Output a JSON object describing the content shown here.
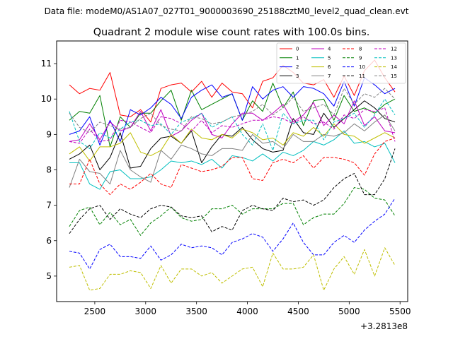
{
  "chart_data": {
    "type": "line",
    "suptitle": "Data file: modeM0/AS1A07_027T01_9000003690_25188cztM0_level2_quad_clean.evt",
    "title": "Quadrant 2 module wise count rates with 100.0s bins.",
    "xlabel": "",
    "ylabel": "",
    "x_offset_label": "+3.2813e8",
    "xlim": [
      2125,
      5575
    ],
    "ylim": [
      4.28,
      11.64
    ],
    "xticks": [
      2500,
      3000,
      3500,
      4000,
      4500,
      5000,
      5500
    ],
    "yticks": [
      5,
      6,
      7,
      8,
      9,
      10,
      11
    ],
    "x": [
      2250,
      2350,
      2450,
      2550,
      2650,
      2750,
      2850,
      2950,
      3050,
      3150,
      3250,
      3350,
      3450,
      3550,
      3650,
      3750,
      3850,
      3950,
      4050,
      4150,
      4250,
      4350,
      4450,
      4550,
      4650,
      4750,
      4850,
      4950,
      5050,
      5150,
      5250,
      5350,
      5450
    ],
    "legend_location": "upper right",
    "legend_ncol": 4,
    "series": [
      {
        "name": "0",
        "color": "#ff0000",
        "dash": "solid",
        "values": [
          10.4,
          10.15,
          10.3,
          10.25,
          10.75,
          9.55,
          9.5,
          9.7,
          9.35,
          10.3,
          10.4,
          10.45,
          10.2,
          10.5,
          10.05,
          10.45,
          10.2,
          10.15,
          9.75,
          10.5,
          10.6,
          10.95,
          10.75,
          10.45,
          10.4,
          10.55,
          10.05,
          10.65,
          10.1,
          10.8,
          11.1,
          10.6,
          10.2
        ]
      },
      {
        "name": "1",
        "color": "#008000",
        "dash": "solid",
        "values": [
          9.4,
          9.65,
          9.6,
          10.1,
          8.65,
          9.5,
          9.2,
          9.6,
          9.6,
          9.95,
          10.25,
          9.4,
          10.25,
          9.7,
          9.85,
          10.0,
          10.15,
          9.4,
          9.95,
          9.65,
          10.45,
          9.75,
          10.2,
          9.25,
          9.95,
          10.0,
          9.4,
          10.1,
          9.65,
          9.75,
          9.6,
          9.85,
          10.0
        ]
      },
      {
        "name": "2",
        "color": "#0000ff",
        "dash": "solid",
        "values": [
          9.0,
          9.1,
          9.5,
          8.7,
          9.4,
          8.8,
          9.7,
          9.55,
          9.75,
          10.05,
          9.85,
          9.45,
          10.05,
          10.25,
          10.4,
          10.05,
          10.15,
          9.4,
          10.35,
          10.0,
          10.25,
          10.35,
          10.05,
          10.35,
          10.3,
          10.15,
          9.8,
          10.5,
          9.8,
          10.6,
          10.4,
          10.15,
          10.3
        ]
      },
      {
        "name": "3",
        "color": "#000000",
        "dash": "solid",
        "values": [
          8.3,
          8.45,
          8.7,
          8.0,
          8.35,
          9.05,
          8.05,
          8.1,
          8.6,
          8.9,
          8.95,
          8.75,
          9.1,
          8.2,
          8.65,
          9.0,
          8.95,
          9.2,
          8.85,
          8.6,
          8.5,
          8.55,
          9.45,
          9.05,
          9.0,
          9.6,
          9.2,
          9.45,
          9.7,
          9.95,
          9.75,
          9.45,
          9.35
        ]
      },
      {
        "name": "4",
        "color": "#bf00bf",
        "dash": "solid",
        "values": [
          8.8,
          8.85,
          9.3,
          8.85,
          9.35,
          9.1,
          9.2,
          9.65,
          9.1,
          9.7,
          8.95,
          9.1,
          9.4,
          9.6,
          9.0,
          8.9,
          9.3,
          9.6,
          9.6,
          9.4,
          9.6,
          9.85,
          9.35,
          9.55,
          9.9,
          9.25,
          9.55,
          9.3,
          9.95,
          9.25,
          9.5,
          9.1,
          9.05
        ]
      },
      {
        "name": "5",
        "color": "#00bfbf",
        "dash": "solid",
        "values": [
          8.2,
          8.2,
          7.6,
          7.45,
          7.95,
          8.0,
          7.75,
          7.75,
          7.8,
          8.0,
          8.25,
          8.2,
          8.25,
          8.15,
          8.3,
          8.05,
          8.4,
          8.35,
          8.25,
          8.45,
          8.25,
          8.5,
          8.4,
          8.55,
          8.8,
          8.7,
          8.85,
          9.1,
          8.75,
          8.8,
          8.65,
          8.75,
          8.2
        ]
      },
      {
        "name": "6",
        "color": "#bfbf00",
        "dash": "solid",
        "values": [
          8.45,
          8.65,
          8.25,
          8.65,
          8.65,
          8.75,
          9.05,
          8.5,
          8.4,
          8.55,
          9.0,
          8.75,
          9.15,
          8.9,
          8.85,
          9.0,
          8.9,
          9.15,
          9.05,
          8.85,
          8.9,
          8.7,
          9.05,
          8.95,
          9.2,
          8.95,
          9.3,
          9.0,
          8.95,
          8.75,
          8.9,
          9.05,
          8.9
        ]
      },
      {
        "name": "7",
        "color": "#808080",
        "dash": "solid",
        "values": [
          7.5,
          8.3,
          7.95,
          7.9,
          7.6,
          8.55,
          8.0,
          7.8,
          7.65,
          8.55,
          8.3,
          8.7,
          8.6,
          8.45,
          8.4,
          8.6,
          8.6,
          8.55,
          9.0,
          8.75,
          8.8,
          8.6,
          9.0,
          8.8,
          8.8,
          9.0,
          8.95,
          9.05,
          9.3,
          9.1,
          9.35,
          9.55,
          9.1
        ]
      },
      {
        "name": "8",
        "color": "#ff0000",
        "dash": "dashed",
        "values": [
          7.6,
          7.6,
          8.3,
          7.6,
          7.3,
          7.6,
          7.45,
          7.65,
          7.9,
          7.6,
          7.5,
          8.15,
          8.05,
          7.95,
          8.0,
          8.1,
          8.35,
          8.35,
          7.75,
          7.7,
          8.2,
          8.3,
          8.2,
          8.4,
          8.05,
          8.35,
          8.35,
          8.3,
          8.2,
          7.85,
          8.45,
          8.8,
          8.9
        ]
      },
      {
        "name": "9",
        "color": "#008000",
        "dash": "dashed",
        "values": [
          6.4,
          6.85,
          6.95,
          6.45,
          6.8,
          6.45,
          6.6,
          6.15,
          6.5,
          6.7,
          6.95,
          6.65,
          6.55,
          6.6,
          6.9,
          6.9,
          7.0,
          6.75,
          6.9,
          6.9,
          6.9,
          7.05,
          7.05,
          6.45,
          6.65,
          6.75,
          6.75,
          7.05,
          7.5,
          7.45,
          7.2,
          7.15,
          6.7
        ]
      },
      {
        "name": "10",
        "color": "#0000ff",
        "dash": "dashed",
        "values": [
          5.7,
          5.65,
          5.2,
          5.75,
          5.9,
          5.55,
          5.55,
          5.5,
          5.85,
          5.45,
          5.6,
          5.9,
          5.8,
          5.85,
          5.8,
          5.6,
          5.95,
          6.05,
          6.2,
          6.1,
          5.7,
          6.05,
          6.5,
          5.95,
          5.6,
          5.6,
          5.95,
          6.15,
          5.95,
          6.3,
          6.55,
          6.75,
          7.2
        ]
      },
      {
        "name": "11",
        "color": "#000000",
        "dash": "dashed",
        "values": [
          6.2,
          6.6,
          6.9,
          7.0,
          6.6,
          6.9,
          6.75,
          6.65,
          6.9,
          7.0,
          6.95,
          6.7,
          6.65,
          6.7,
          6.25,
          6.4,
          6.3,
          6.85,
          7.0,
          6.9,
          6.85,
          7.2,
          7.1,
          7.15,
          7.0,
          7.15,
          7.5,
          7.75,
          7.9,
          7.3,
          7.3,
          7.75,
          8.6
        ]
      },
      {
        "name": "12",
        "color": "#bf00bf",
        "dash": "dashed",
        "values": [
          8.8,
          8.75,
          9.15,
          8.8,
          8.85,
          9.4,
          9.35,
          9.2,
          9.05,
          9.5,
          9.45,
          9.3,
          9.1,
          9.4,
          9.05,
          9.25,
          9.2,
          9.3,
          9.4,
          9.4,
          9.5,
          9.45,
          9.3,
          9.5,
          9.3,
          9.35,
          9.15,
          9.55,
          9.45,
          9.7,
          9.65,
          9.75,
          8.8
        ]
      },
      {
        "name": "13",
        "color": "#00bfbf",
        "dash": "dashed",
        "values": [
          9.65,
          8.8,
          8.6,
          9.05,
          8.9,
          9.15,
          9.35,
          9.4,
          9.25,
          9.3,
          9.0,
          9.35,
          9.45,
          9.6,
          9.2,
          9.35,
          9.5,
          9.0,
          8.7,
          9.3,
          8.55,
          9.6,
          9.3,
          9.4,
          9.4,
          8.85,
          9.35,
          9.45,
          9.6,
          9.2,
          9.55,
          10.0,
          9.55
        ]
      },
      {
        "name": "14",
        "color": "#bfbf00",
        "dash": "dashed",
        "values": [
          5.25,
          5.3,
          4.6,
          4.65,
          5.05,
          5.05,
          5.15,
          5.1,
          4.65,
          5.3,
          4.8,
          5.2,
          5.2,
          5.0,
          5.1,
          4.8,
          5.0,
          5.2,
          5.25,
          4.7,
          5.65,
          5.2,
          5.2,
          5.25,
          5.6,
          4.6,
          5.2,
          5.55,
          5.05,
          5.75,
          5.0,
          5.8,
          5.3
        ]
      },
      {
        "name": "15",
        "color": "#808080",
        "dash": "dashed",
        "values": [
          9.6,
          9.2,
          9.05,
          9.35,
          9.25,
          9.15,
          9.2,
          9.45,
          9.6,
          9.25,
          9.15,
          9.1,
          9.5,
          9.45,
          9.3,
          9.35,
          9.5,
          9.55,
          9.65,
          9.85,
          9.55,
          9.75,
          10.05,
          9.65,
          9.75,
          9.85,
          9.55,
          10.3,
          9.85,
          10.15,
          10.05,
          10.3,
          10.0
        ]
      }
    ]
  }
}
